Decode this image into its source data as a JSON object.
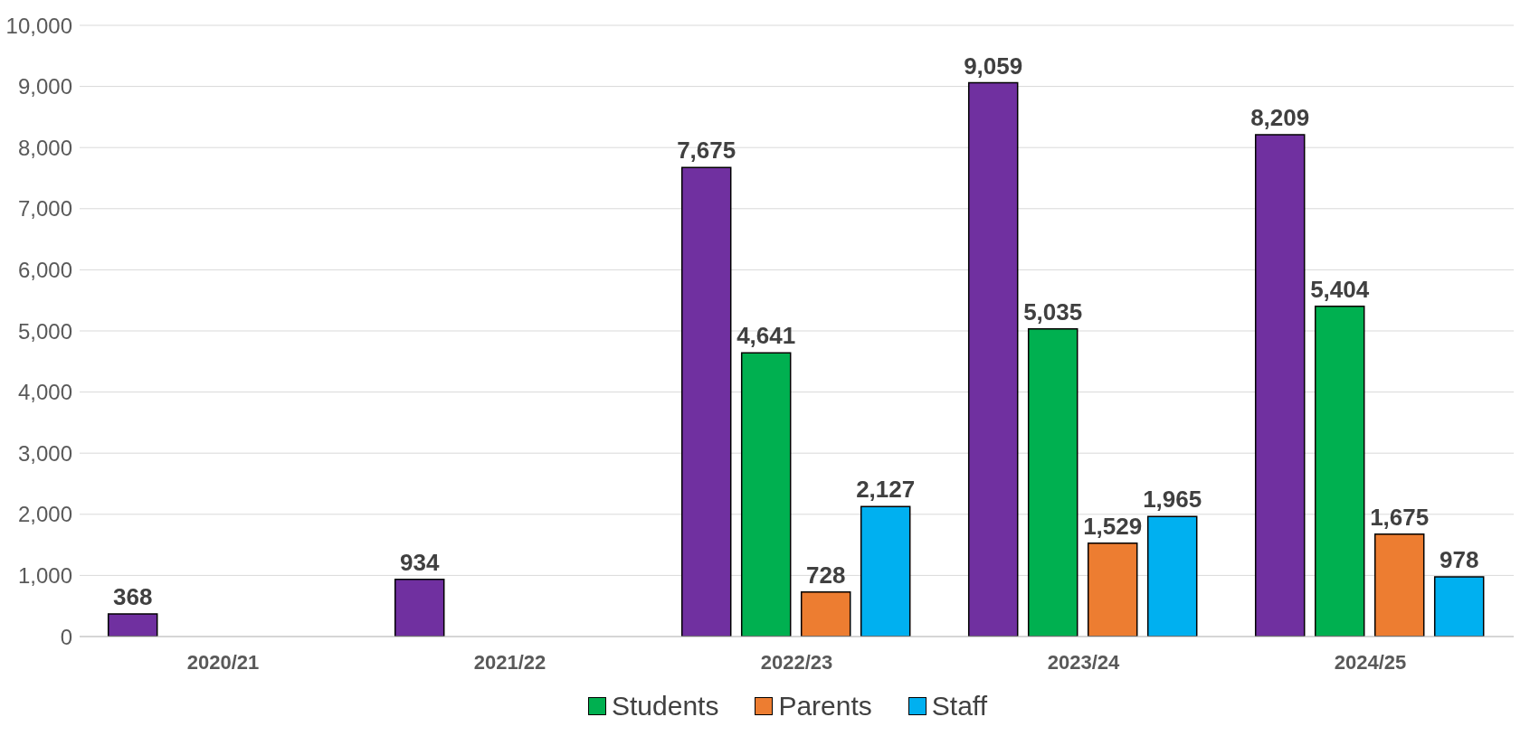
{
  "chart_data": {
    "type": "bar",
    "categories": [
      "2020/21",
      "2021/22",
      "2022/23",
      "2023/24",
      "2024/25"
    ],
    "series": [
      {
        "color": "#7030a0",
        "values": [
          368,
          934,
          7675,
          9059,
          8209
        ],
        "value_labels": [
          "368",
          "934",
          "7,675",
          "9,059",
          "8,209"
        ]
      },
      {
        "name": "Students",
        "color": "#00b050",
        "values": [
          null,
          null,
          4641,
          5035,
          5404
        ],
        "value_labels": [
          null,
          null,
          "4,641",
          "5,035",
          "5,404"
        ]
      },
      {
        "name": "Parents",
        "color": "#ed7d31",
        "values": [
          null,
          null,
          728,
          1529,
          1675
        ],
        "value_labels": [
          null,
          null,
          "728",
          "1,529",
          "1,675"
        ]
      },
      {
        "name": "Staff",
        "color": "#00b0f0",
        "values": [
          null,
          null,
          2127,
          1965,
          978
        ],
        "value_labels": [
          null,
          null,
          "2,127",
          "1,965",
          "978"
        ]
      }
    ],
    "ylim": [
      0,
      10000
    ],
    "yticks": [
      {
        "value": 0,
        "label": "0"
      },
      {
        "value": 1000,
        "label": "1,000"
      },
      {
        "value": 2000,
        "label": "2,000"
      },
      {
        "value": 3000,
        "label": "3,000"
      },
      {
        "value": 4000,
        "label": "4,000"
      },
      {
        "value": 5000,
        "label": "5,000"
      },
      {
        "value": 6000,
        "label": "6,000"
      },
      {
        "value": 7000,
        "label": "7,000"
      },
      {
        "value": 8000,
        "label": "8,000"
      },
      {
        "value": 9000,
        "label": "9,000"
      },
      {
        "value": 10000,
        "label": "10,000"
      }
    ],
    "grid": "y",
    "legend": "bottom"
  }
}
